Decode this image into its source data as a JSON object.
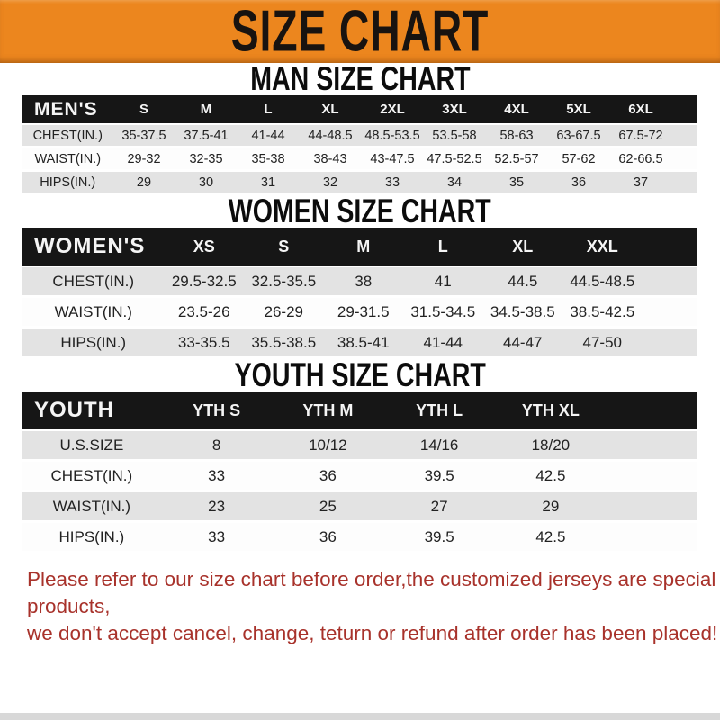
{
  "banner": {
    "title": "SIZE CHART"
  },
  "sections": [
    {
      "title": "MAN SIZE CHART",
      "header_label": "MEN'S",
      "sizes": [
        "S",
        "M",
        "L",
        "XL",
        "2XL",
        "3XL",
        "4XL",
        "5XL",
        "6XL"
      ],
      "rows": [
        {
          "label": "CHEST(IN.)",
          "values": [
            "35-37.5",
            "37.5-41",
            "41-44",
            "44-48.5",
            "48.5-53.5",
            "53.5-58",
            "58-63",
            "63-67.5",
            "67.5-72"
          ]
        },
        {
          "label": "WAIST(IN.)",
          "values": [
            "29-32",
            "32-35",
            "35-38",
            "38-43",
            "43-47.5",
            "47.5-52.5",
            "52.5-57",
            "57-62",
            "62-66.5"
          ]
        },
        {
          "label": "HIPS(IN.)",
          "values": [
            "29",
            "30",
            "31",
            "32",
            "33",
            "34",
            "35",
            "36",
            "37"
          ]
        }
      ]
    },
    {
      "title": "WOMEN SIZE CHART",
      "header_label": "WOMEN'S",
      "sizes": [
        "XS",
        "S",
        "M",
        "L",
        "XL",
        "XXL"
      ],
      "rows": [
        {
          "label": "CHEST(IN.)",
          "values": [
            "29.5-32.5",
            "32.5-35.5",
            "38",
            "41",
            "44.5",
            "44.5-48.5"
          ]
        },
        {
          "label": "WAIST(IN.)",
          "values": [
            "23.5-26",
            "26-29",
            "29-31.5",
            "31.5-34.5",
            "34.5-38.5",
            "38.5-42.5"
          ]
        },
        {
          "label": "HIPS(IN.)",
          "values": [
            "33-35.5",
            "35.5-38.5",
            "38.5-41",
            "41-44",
            "44-47",
            "47-50"
          ]
        }
      ]
    },
    {
      "title": "YOUTH SIZE CHART",
      "header_label": "YOUTH",
      "sizes": [
        "YTH S",
        "YTH M",
        "YTH L",
        "YTH XL"
      ],
      "rows": [
        {
          "label": "U.S.SIZE",
          "values": [
            "8",
            "10/12",
            "14/16",
            "18/20"
          ]
        },
        {
          "label": "CHEST(IN.)",
          "values": [
            "33",
            "36",
            "39.5",
            "42.5"
          ]
        },
        {
          "label": "WAIST(IN.)",
          "values": [
            "23",
            "25",
            "27",
            "29"
          ]
        },
        {
          "label": "HIPS(IN.)",
          "values": [
            "33",
            "36",
            "39.5",
            "42.5"
          ]
        }
      ]
    }
  ],
  "disclaimer": {
    "lines": [
      "Please refer to our size chart before order,the customized jerseys are special products,",
      "we don't accept cancel, change, teturn or refund after order has been placed!"
    ]
  },
  "colors": {
    "banner_bg": "#EC861E",
    "banner_text": "#181310",
    "header_bar_bg": "#161616",
    "header_bar_text": "#f5f5f5",
    "row_shaded_bg": "#e3e3e3",
    "row_plain_bg": "#fdfdfd",
    "data_text": "#222222",
    "title_text": "#0c0c0c",
    "disclaimer_text": "#A8322B",
    "footer_strip": "#d8d8d8"
  }
}
